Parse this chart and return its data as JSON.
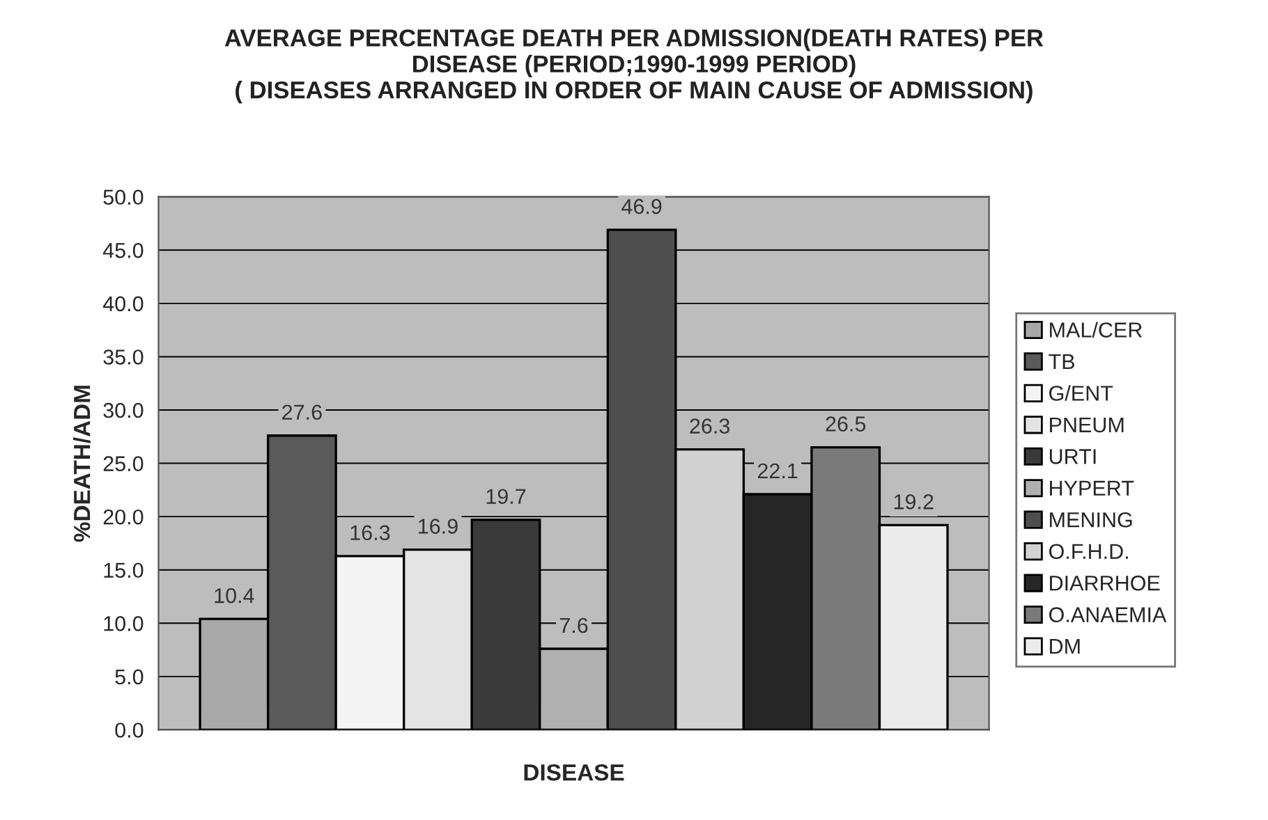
{
  "chart_data": {
    "type": "bar",
    "title": "AVERAGE PERCENTAGE DEATH PER ADMISSION(DEATH RATES) PER\nDISEASE (PERIOD;1990-1999 PERIOD)\n( DISEASES ARRANGED IN ORDER OF MAIN CAUSE OF ADMISSION)",
    "xlabel": "DISEASE",
    "ylabel": "%DEATH/ADM",
    "categories": [
      null
    ],
    "series": [
      {
        "name": "MAL/CER",
        "color": "#a8a8a8",
        "values": [
          10.4
        ]
      },
      {
        "name": "TB",
        "color": "#5a5a5a",
        "values": [
          27.6
        ]
      },
      {
        "name": "G/ENT",
        "color": "#f4f4f4",
        "values": [
          16.3
        ]
      },
      {
        "name": "PNEUM",
        "color": "#e4e4e4",
        "values": [
          16.9
        ]
      },
      {
        "name": "URTI",
        "color": "#3a3a3a",
        "values": [
          19.7
        ]
      },
      {
        "name": "HYPERT",
        "color": "#b0b0b0",
        "values": [
          7.6
        ]
      },
      {
        "name": "MENING",
        "color": "#4e4e4e",
        "values": [
          46.9
        ]
      },
      {
        "name": "O.F.H.D.",
        "color": "#d2d2d2",
        "values": [
          26.3
        ]
      },
      {
        "name": "DIARRHOE",
        "color": "#262626",
        "values": [
          22.1
        ]
      },
      {
        "name": "O.ANAEMIA",
        "color": "#7a7a7a",
        "values": [
          26.5
        ]
      },
      {
        "name": "DM",
        "color": "#ececec",
        "values": [
          19.2
        ]
      }
    ],
    "ylim": [
      0,
      50
    ],
    "yticks": [
      {
        "value": 0,
        "label": "0.0"
      },
      {
        "value": 5,
        "label": "5.0"
      },
      {
        "value": 10,
        "label": "10.0"
      },
      {
        "value": 15,
        "label": "15.0"
      },
      {
        "value": 20,
        "label": "20.0"
      },
      {
        "value": 25,
        "label": "25.0"
      },
      {
        "value": 30,
        "label": "30.0"
      },
      {
        "value": 35,
        "label": "35.0"
      },
      {
        "value": 40,
        "label": "40.0"
      },
      {
        "value": 45,
        "label": "45.0"
      },
      {
        "value": 50,
        "label": "50.0"
      }
    ],
    "grid": "y",
    "legend": "right",
    "data_labels": true
  }
}
